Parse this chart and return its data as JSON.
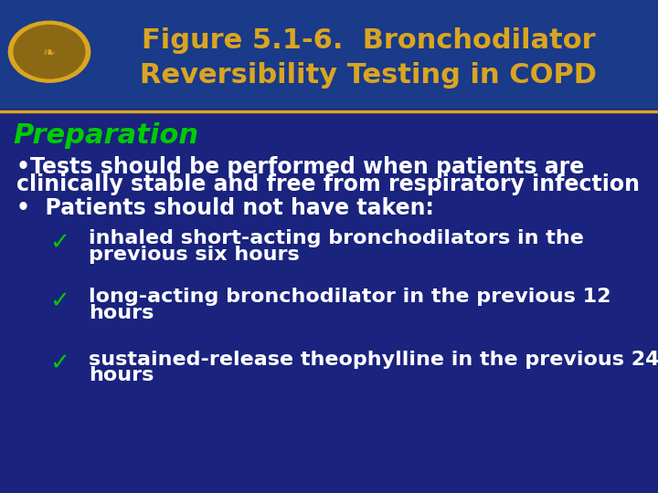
{
  "background_color": "#1a237e",
  "header_bg_color": "#1a3a8a",
  "title_line1": "Figure 5.1-6.  Bronchodilator",
  "title_line2": "Reversibility Testing in COPD",
  "title_color": "#DAA520",
  "title_fontsize": 22,
  "separator_color": "#DAA520",
  "section_header": "Preparation",
  "section_header_color": "#00cc00",
  "section_header_fontsize": 22,
  "bullet_char": "•",
  "bullet1_text_line1": "Tests should be performed when patients are",
  "bullet1_text_line2": "clinically stable and free from respiratory infection",
  "bullet_color": "#ffffff",
  "bullet_fontsize": 17,
  "bullet2_text": "Patients should not have taken:",
  "check_color": "#00cc00",
  "check_char": "✓",
  "sub1_line1": "inhaled short-acting bronchodilators in the",
  "sub1_line2": "previous six hours",
  "sub2_line1": "long-acting bronchodilator in the previous 12",
  "sub2_line2": "hours",
  "sub3_line1": "sustained-release theophylline in the previous 24",
  "sub3_line2": "hours",
  "sub_color": "#ffffff",
  "sub_fontsize": 16
}
